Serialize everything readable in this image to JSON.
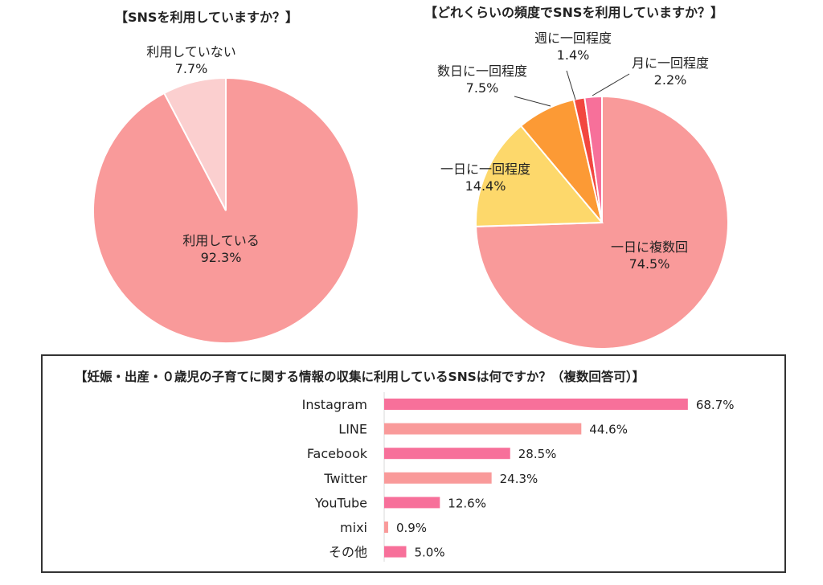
{
  "chart_data": [
    {
      "type": "pie",
      "title": "【SNSを利用していますか？】",
      "slices": [
        {
          "label": "利用している",
          "value": 92.3,
          "display": "92.3%",
          "color": "#f99a9a"
        },
        {
          "label": "利用していない",
          "value": 7.7,
          "display": "7.7%",
          "color": "#fbcfcf"
        }
      ]
    },
    {
      "type": "pie",
      "title": "【どれくらいの頻度でSNSを利用していますか？】",
      "slices": [
        {
          "label": "一日に複数回",
          "value": 74.5,
          "display": "74.5%",
          "color": "#f99a9a"
        },
        {
          "label": "一日に一回程度",
          "value": 14.4,
          "display": "14.4%",
          "color": "#fdd86b"
        },
        {
          "label": "数日に一回程度",
          "value": 7.5,
          "display": "7.5%",
          "color": "#fc9a35"
        },
        {
          "label": "週に一回程度",
          "value": 1.4,
          "display": "1.4%",
          "color": "#f2473f"
        },
        {
          "label": "月に一回程度",
          "value": 2.2,
          "display": "2.2%",
          "color": "#f7709a"
        }
      ]
    },
    {
      "type": "bar",
      "orientation": "horizontal",
      "title": "【妊娠・出産・０歳児の子育てに関する情報の収集に利用しているSNSは何ですか？（複数回答可）】",
      "categories": [
        "Instagram",
        "LINE",
        "Facebook",
        "Twitter",
        "YouTube",
        "mixi",
        "その他"
      ],
      "values": [
        68.7,
        44.6,
        28.5,
        24.3,
        12.6,
        0.9,
        5.0
      ],
      "value_labels": [
        "68.7%",
        "44.6%",
        "28.5%",
        "24.3%",
        "12.6%",
        "0.9%",
        "5.0%"
      ],
      "colors": [
        "#f7709a",
        "#f99a9a",
        "#f7709a",
        "#f99a9a",
        "#f7709a",
        "#f99a9a",
        "#f7709a"
      ],
      "xlim": [
        0,
        100
      ]
    }
  ]
}
